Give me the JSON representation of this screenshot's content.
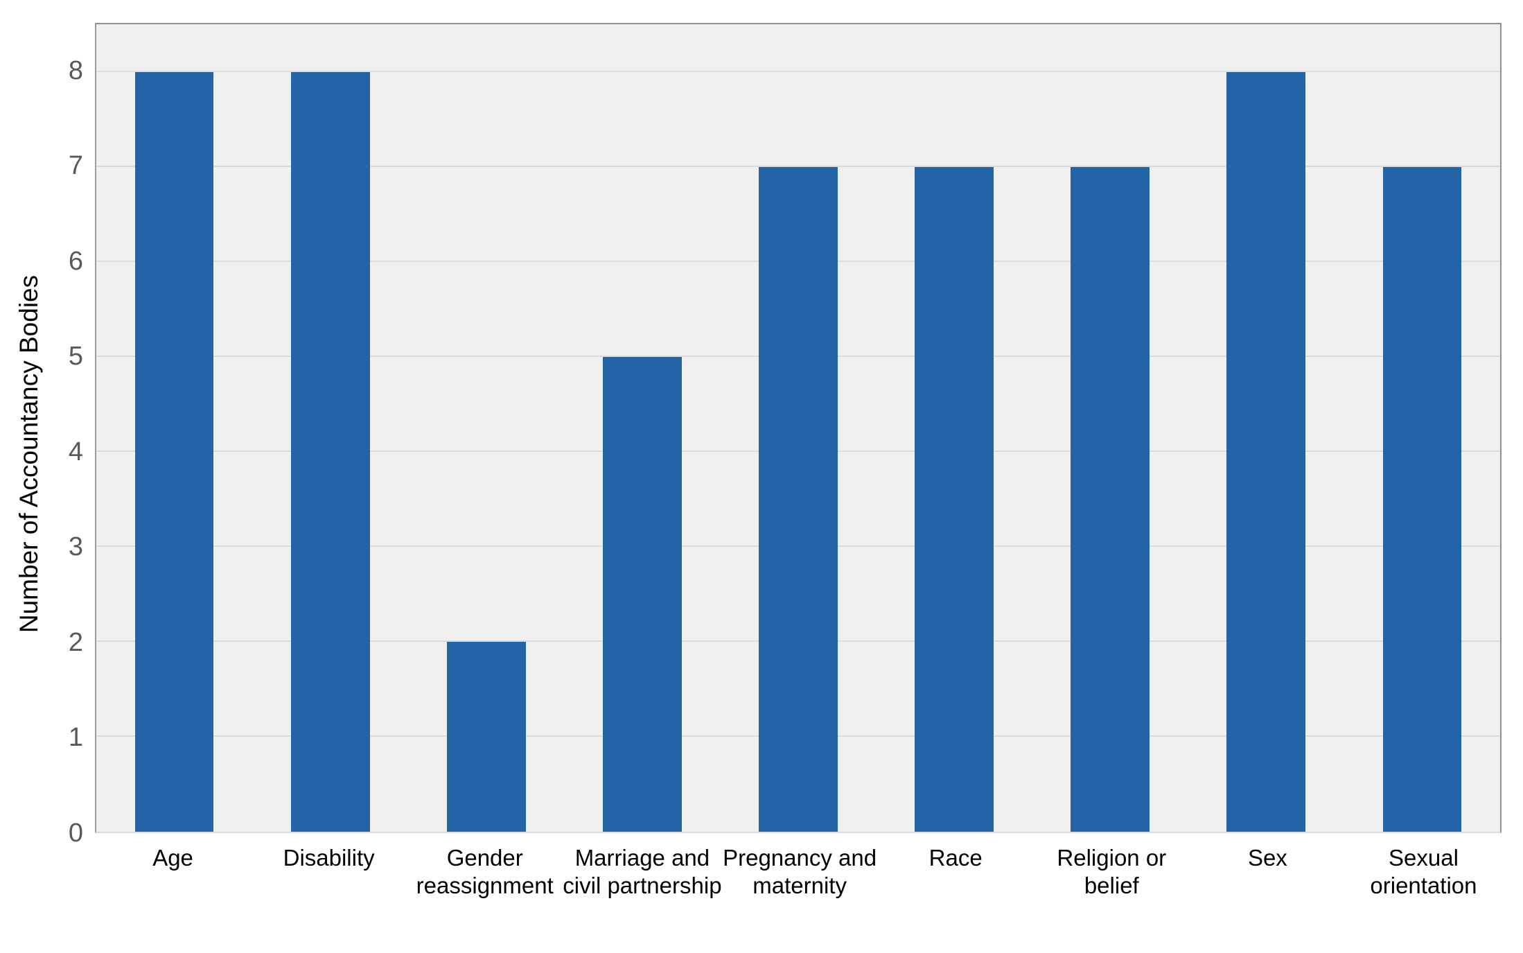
{
  "chart_data": {
    "type": "bar",
    "title": "",
    "xlabel": "",
    "ylabel": "Number of Accountancy Bodies",
    "categories": [
      "Age",
      "Disability",
      "Gender\nreassignment",
      "Marriage and\ncivil partnership",
      "Pregnancy and\nmaternity",
      "Race",
      "Religion or\nbelief",
      "Sex",
      "Sexual\norientation"
    ],
    "values": [
      8,
      8,
      2,
      5,
      7,
      7,
      7,
      8,
      7
    ],
    "ylim": [
      0,
      8.5
    ],
    "yticks": [
      0,
      1,
      2,
      3,
      4,
      5,
      6,
      7,
      8
    ],
    "grid": true,
    "legend": false,
    "bar_color": "#2364a7",
    "plot_background_color": "#f0f0f0",
    "gridline_color": "#dcdcdc",
    "ytick_label_color": "#595959",
    "xtick_label_color": "#000000"
  }
}
